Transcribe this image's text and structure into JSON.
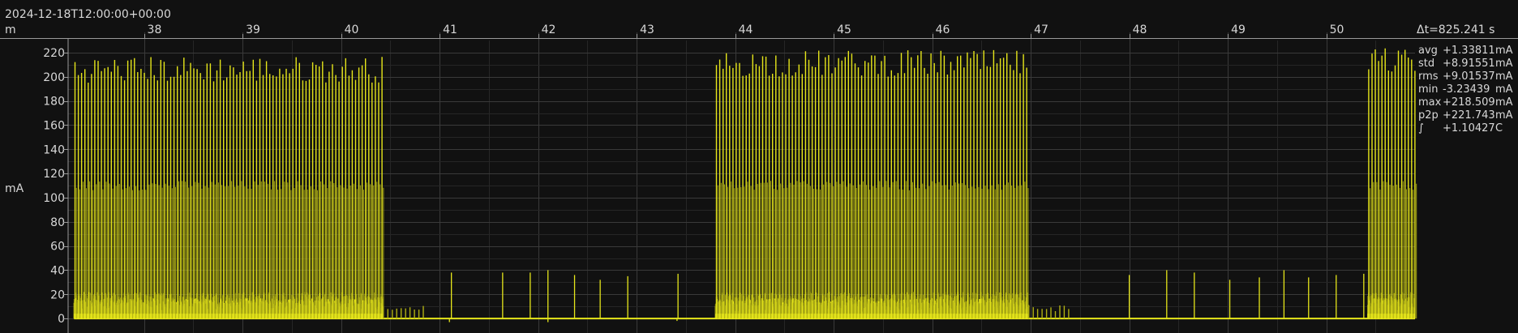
{
  "timestamp": "2024-12-18T12:00:00+00:00",
  "delta_t": "Δt=825.241 s",
  "chart_data": {
    "type": "line",
    "x_unit_label": "m",
    "y_unit_label": "mA",
    "x_ticks": [
      "38",
      "39",
      "40",
      "41",
      "42",
      "43",
      "44",
      "45",
      "46",
      "47",
      "48",
      "49",
      "50"
    ],
    "x_range": [
      37.23,
      50.9
    ],
    "y_ticks": [
      "0",
      "20",
      "40",
      "60",
      "80",
      "100",
      "120",
      "140",
      "160",
      "180",
      "200",
      "220"
    ],
    "y_range": [
      -12,
      230
    ],
    "grid": true,
    "colors": {
      "signal": "#e6e61a",
      "grid": "#3a3a3a",
      "background": "#111111",
      "text": "#d8d8d8"
    },
    "series": [
      {
        "values_description_free": true,
        "active_bursts": [
          {
            "x_start": 37.29,
            "x_end": 40.43,
            "peak": 205,
            "mid": 110,
            "base": 14
          },
          {
            "x_start": 43.8,
            "x_end": 46.98,
            "peak": 210,
            "mid": 110,
            "base": 14
          },
          {
            "x_start": 50.42,
            "x_end": 50.9,
            "peak": 212,
            "mid": 110,
            "base": 14
          }
        ],
        "idle_spikes": [
          {
            "x": 41.12,
            "y": 38
          },
          {
            "x": 41.64,
            "y": 38
          },
          {
            "x": 41.92,
            "y": 38
          },
          {
            "x": 42.1,
            "y": 40
          },
          {
            "x": 42.37,
            "y": 36
          },
          {
            "x": 42.63,
            "y": 32
          },
          {
            "x": 42.91,
            "y": 35
          },
          {
            "x": 43.42,
            "y": 37
          },
          {
            "x": 48.0,
            "y": 36
          },
          {
            "x": 48.38,
            "y": 40
          },
          {
            "x": 48.66,
            "y": 38
          },
          {
            "x": 49.02,
            "y": 32
          },
          {
            "x": 49.32,
            "y": 34
          },
          {
            "x": 49.57,
            "y": 40
          },
          {
            "x": 49.82,
            "y": 34
          },
          {
            "x": 50.1,
            "y": 36
          },
          {
            "x": 50.38,
            "y": 37
          }
        ],
        "dips": [
          {
            "x": 41.1,
            "y": -3
          },
          {
            "x": 42.1,
            "y": -3
          },
          {
            "x": 43.41,
            "y": -2
          }
        ],
        "tail_ripples": [
          {
            "x_start": 40.43,
            "x_end": 40.88,
            "peak": 10
          },
          {
            "x_start": 46.98,
            "x_end": 47.43,
            "peak": 10
          }
        ]
      }
    ]
  },
  "stats": [
    {
      "label": "avg",
      "value": "+1.33811",
      "unit": "mA"
    },
    {
      "label": "std",
      "value": "+8.91551",
      "unit": "mA"
    },
    {
      "label": "rms",
      "value": "+9.01537",
      "unit": "mA"
    },
    {
      "label": "min",
      "value": "-3.23439",
      "unit": "mA"
    },
    {
      "label": "max",
      "value": "+218.509",
      "unit": "mA"
    },
    {
      "label": "p2p",
      "value": "+221.743",
      "unit": "mA"
    },
    {
      "label": "∫",
      "value": "+1.10427",
      "unit": "C"
    }
  ]
}
